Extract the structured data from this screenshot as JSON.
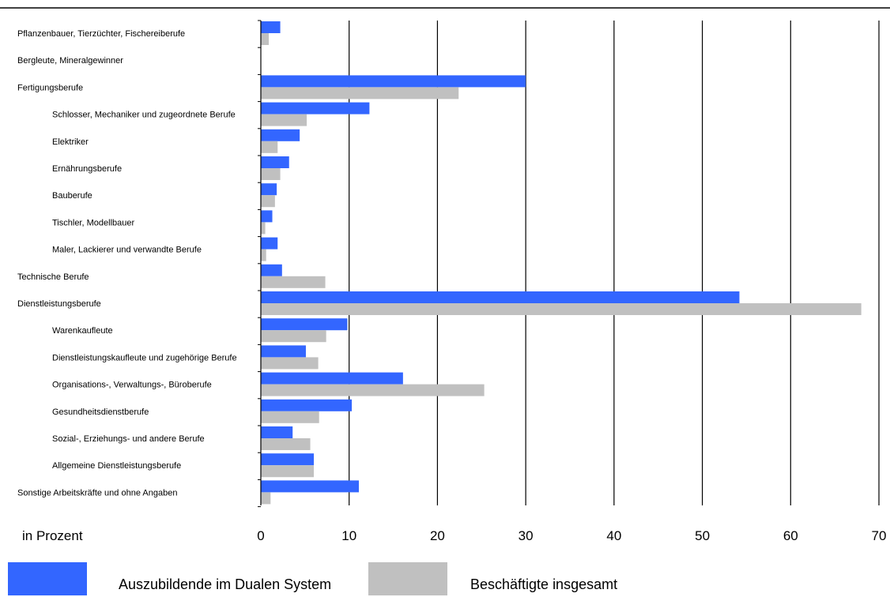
{
  "chart_data": {
    "type": "bar",
    "orientation": "horizontal",
    "categories": [
      "Pflanzenbauer, Tierzüchter, Fischereiberufe",
      "Bergleute, Mineralgewinner",
      "Fertigungsberufe",
      "Schlosser, Mechaniker und zugeordnete Berufe",
      "Elektriker",
      "Ernährungsberufe",
      "Bauberufe",
      "Tischler, Modellbauer",
      "Maler, Lackierer und verwandte Berufe",
      "Technische Berufe",
      "Dienstleistungsberufe",
      "Warenkaufleute",
      "Dienstleistungskaufleute und zugehörige Berufe",
      "Organisations-, Verwaltungs-, Büroberufe",
      "Gesundheitsdienstberufe",
      "Sozial-, Erziehungs- und andere Berufe",
      "Allgemeine Dienstleistungsberufe",
      "Sonstige Arbeitskräfte und ohne Angaben"
    ],
    "category_indent": [
      false,
      false,
      false,
      true,
      true,
      true,
      true,
      true,
      true,
      false,
      false,
      true,
      true,
      true,
      true,
      true,
      true,
      false
    ],
    "series": [
      {
        "name": "Auszubildende im Dualen System",
        "color": "#3366ff",
        "values": [
          2.2,
          0.0,
          30.0,
          12.3,
          4.4,
          3.2,
          1.8,
          1.3,
          1.9,
          2.4,
          54.2,
          9.8,
          5.1,
          16.1,
          10.3,
          3.6,
          6.0,
          11.1
        ]
      },
      {
        "name": "Beschäftigte insgesamt",
        "color": "#c0c0c0",
        "values": [
          0.9,
          0.0,
          22.4,
          5.2,
          1.9,
          2.2,
          1.6,
          0.5,
          0.6,
          7.3,
          68.0,
          7.4,
          6.5,
          25.3,
          6.6,
          5.6,
          6.0,
          1.1
        ]
      }
    ],
    "xlim": [
      0,
      70
    ],
    "xticks": [
      "0",
      "10",
      "20",
      "30",
      "40",
      "50",
      "60",
      "70"
    ],
    "unit_label": "in Prozent",
    "grid": "vertical",
    "legend_position": "bottom"
  }
}
